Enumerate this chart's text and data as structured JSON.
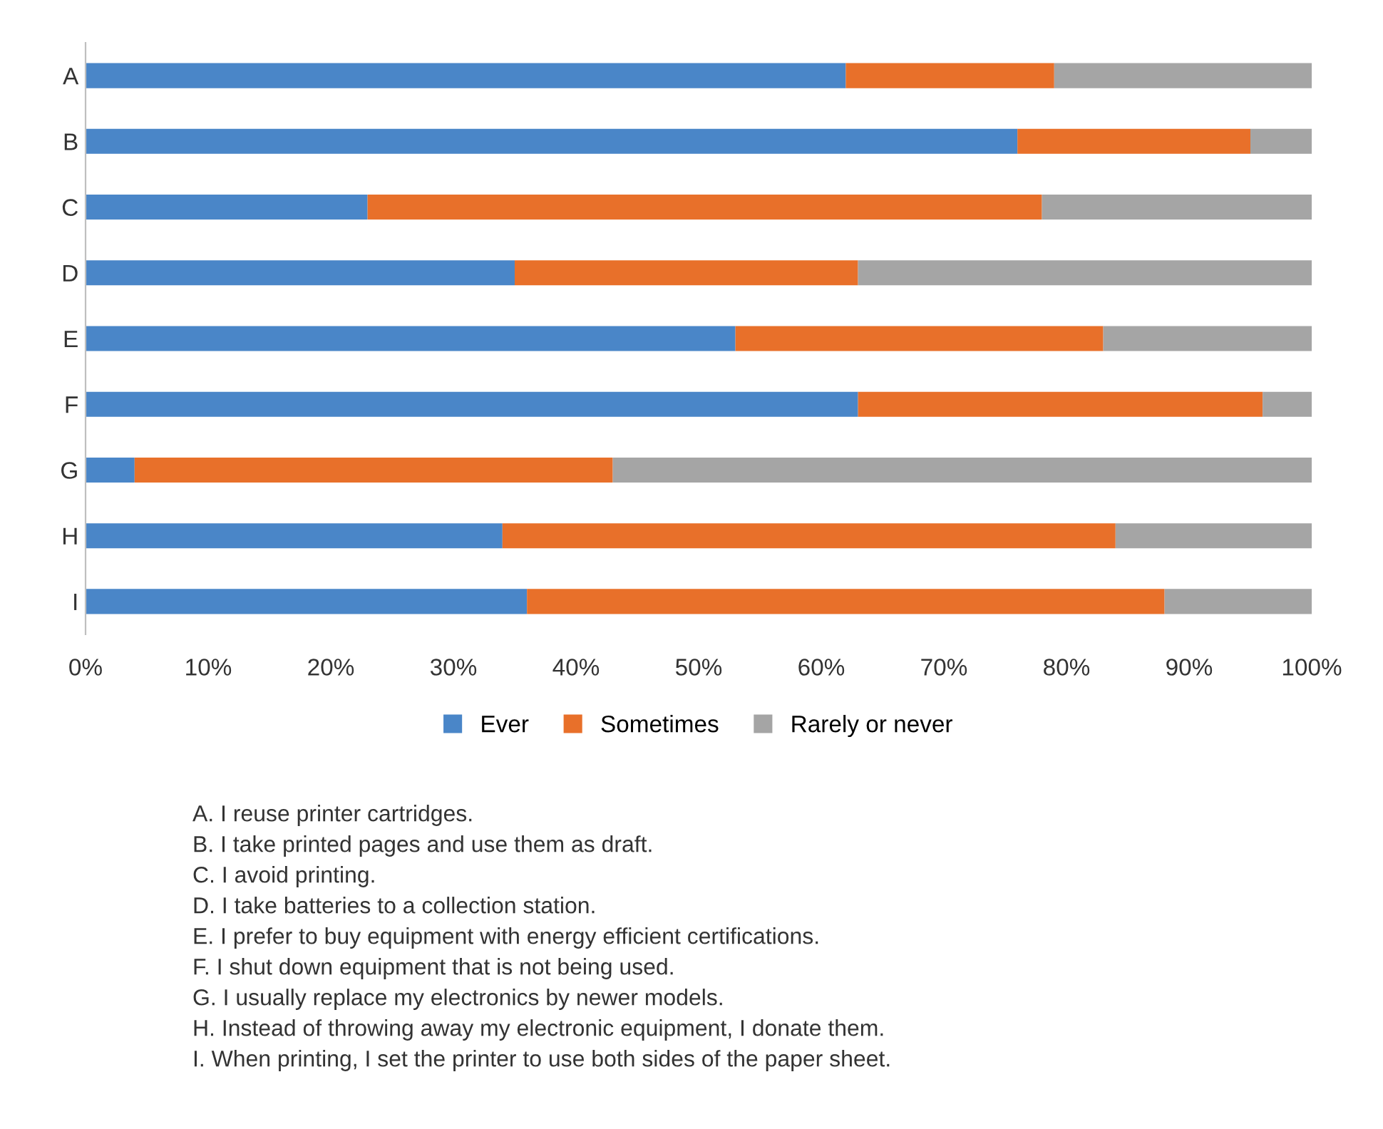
{
  "chart_data": {
    "type": "bar",
    "orientation": "horizontal",
    "stacked": true,
    "categories": [
      "A",
      "B",
      "C",
      "D",
      "E",
      "F",
      "G",
      "H",
      "I"
    ],
    "series": [
      {
        "name": "Ever",
        "color": "#4a86c8",
        "values": [
          62,
          76,
          23,
          35,
          53,
          63,
          4,
          34,
          36
        ]
      },
      {
        "name": "Sometimes",
        "color": "#e8702a",
        "values": [
          17,
          19,
          55,
          28,
          30,
          33,
          39,
          50,
          52
        ]
      },
      {
        "name": "Rarely or never",
        "color": "#a5a5a5",
        "values": [
          21,
          5,
          22,
          37,
          17,
          4,
          57,
          16,
          12
        ]
      }
    ],
    "xlim": [
      0,
      100
    ],
    "xticks": [
      {
        "value": 0,
        "label": "0%"
      },
      {
        "value": 10,
        "label": "10%"
      },
      {
        "value": 20,
        "label": "20%"
      },
      {
        "value": 30,
        "label": "30%"
      },
      {
        "value": 40,
        "label": "40%"
      },
      {
        "value": 50,
        "label": "50%"
      },
      {
        "value": 60,
        "label": "60%"
      },
      {
        "value": 70,
        "label": "70%"
      },
      {
        "value": 80,
        "label": "80%"
      },
      {
        "value": 90,
        "label": "90%"
      },
      {
        "value": 100,
        "label": "100%"
      }
    ],
    "grid": false,
    "legend": "bottom",
    "annotations": [
      "A. I reuse printer cartridges.",
      "B. I take printed pages and use them as draft.",
      "C. I avoid printing.",
      "D. I take batteries to a collection station.",
      "E. I prefer to buy equipment with energy efficient certifications.",
      "F. I shut down equipment that is not being used.",
      "G. I usually replace my electronics by newer models.",
      "H. Instead of throwing away my electronic equipment, I donate them.",
      "I. When printing, I set the printer to use both sides of the paper sheet."
    ]
  }
}
